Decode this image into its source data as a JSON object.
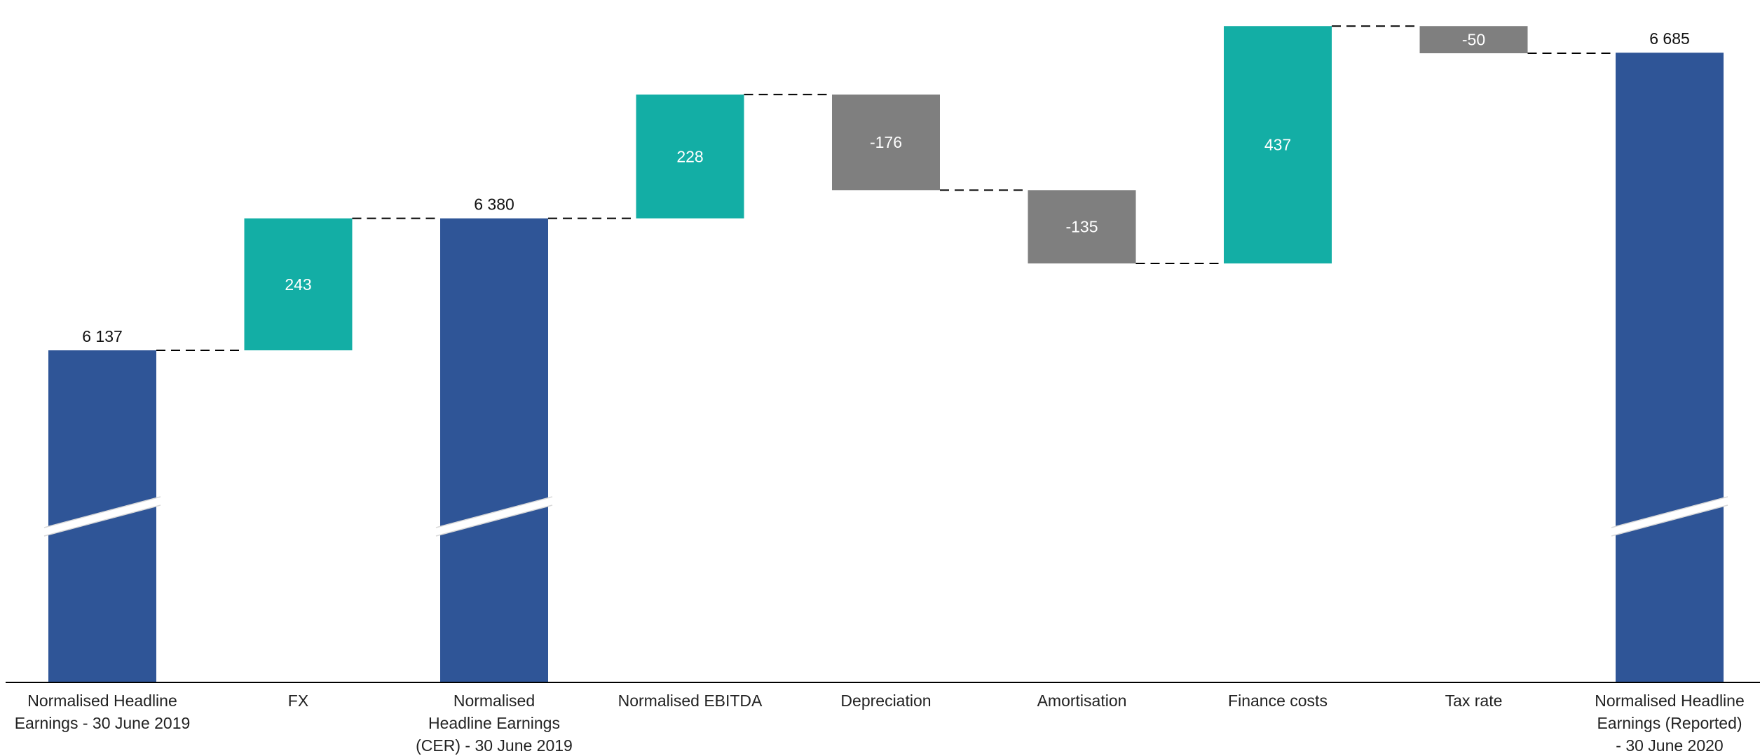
{
  "chart_data": {
    "type": "waterfall",
    "categories": [
      [
        "Normalised Headline",
        "Earnings - 30 June 2019"
      ],
      [
        "FX"
      ],
      [
        "Normalised",
        "Headline Earnings",
        "(CER) - 30 June 2019"
      ],
      [
        "Normalised EBITDA"
      ],
      [
        "Depreciation"
      ],
      [
        "Amortisation"
      ],
      [
        "Finance costs"
      ],
      [
        "Tax rate"
      ],
      [
        "Normalised Headline",
        "Earnings (Reported)",
        "- 30 June 2020"
      ]
    ],
    "values": [
      6137,
      243,
      6380,
      228,
      -176,
      -135,
      437,
      -50,
      6685
    ],
    "value_labels": [
      "6 137",
      "243",
      "6 380",
      "228",
      "-176",
      "-135",
      "437",
      "-50",
      "6 685"
    ],
    "kinds": [
      "total",
      "increase",
      "total",
      "increase",
      "decrease",
      "decrease",
      "increase",
      "decrease",
      "total"
    ],
    "colors": {
      "total": "#2f5597",
      "increase": "#13aea5",
      "decrease": "#7f7f7f",
      "connector": "#000000",
      "axis": "#000000",
      "total_label": "#111111",
      "inner_label": "#ffffff"
    },
    "axis_break": true,
    "connectors": "dashed"
  }
}
